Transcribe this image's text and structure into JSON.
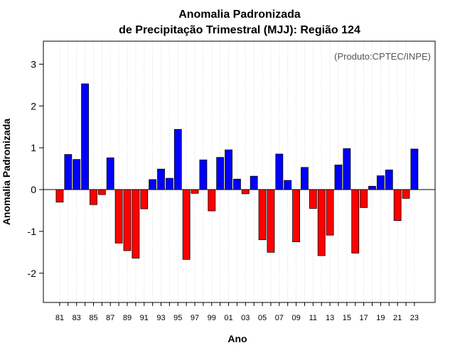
{
  "chart_data": {
    "type": "bar",
    "title": "Anomalia Padronizada",
    "subtitle": "de Precipitação Trimestral (MJJ): Região 124",
    "xlabel": "Ano",
    "ylabel": "Anomalia Padronizada",
    "credit": "(Produto:CPTEC/INPE)",
    "ylim": [
      -2.7,
      3.55
    ],
    "yticks": [
      -2,
      -1,
      0,
      1,
      2,
      3
    ],
    "grid": true,
    "categories": [
      "81",
      "82",
      "83",
      "84",
      "85",
      "86",
      "87",
      "88",
      "89",
      "90",
      "91",
      "92",
      "93",
      "94",
      "95",
      "96",
      "97",
      "98",
      "99",
      "00",
      "01",
      "02",
      "03",
      "04",
      "05",
      "06",
      "07",
      "08",
      "09",
      "10",
      "11",
      "12",
      "13",
      "14",
      "15",
      "16",
      "17",
      "18",
      "19",
      "20",
      "21",
      "22",
      "23"
    ],
    "xtick_labels": [
      "81",
      "83",
      "85",
      "87",
      "89",
      "91",
      "93",
      "95",
      "97",
      "99",
      "01",
      "03",
      "05",
      "07",
      "09",
      "11",
      "13",
      "15",
      "17",
      "19",
      "21",
      "23"
    ],
    "values": [
      -0.3,
      0.84,
      0.72,
      2.53,
      -0.36,
      -0.12,
      0.76,
      -1.28,
      -1.46,
      -1.64,
      -0.46,
      0.24,
      0.49,
      0.27,
      1.44,
      -1.67,
      -0.09,
      0.71,
      -0.51,
      0.77,
      0.95,
      0.25,
      -0.1,
      0.32,
      -1.2,
      -1.5,
      0.85,
      0.22,
      -1.25,
      0.53,
      -0.45,
      -1.58,
      -1.09,
      0.59,
      0.98,
      -1.52,
      -0.43,
      0.08,
      0.33,
      0.47,
      -0.74,
      -0.21,
      0.97
    ],
    "colors": {
      "positive": "#0000ff",
      "negative": "#ff0000",
      "grid": "#d0d0d0",
      "frame": "#000000"
    }
  }
}
